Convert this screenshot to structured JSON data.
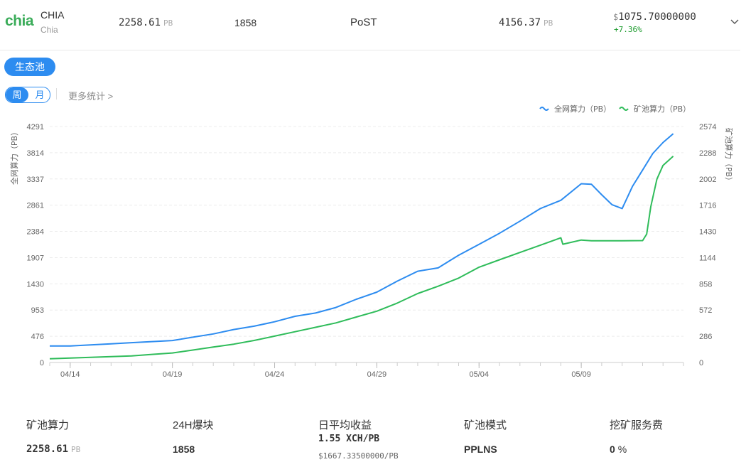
{
  "header": {
    "logo": "chia",
    "coin_name": "CHIA",
    "coin_sub": "Chia",
    "pool_hashrate": "2258.61",
    "pool_unit": "PB",
    "blocks": "1858",
    "algorithm": "PoST",
    "network_hashrate": "4156.37",
    "network_unit": "PB",
    "price_currency": "$",
    "price": "1075.70000000",
    "change": "+7.36%"
  },
  "tags": {
    "ecosystem": "生态池"
  },
  "tabs": {
    "week": "周",
    "month": "月",
    "more": "更多统计 >"
  },
  "chart_data": {
    "type": "line",
    "legend": [
      "全网算力（PB）",
      "矿池算力（PB）"
    ],
    "legend_position": "top-right",
    "ylabel_left": "全网算力（PB）",
    "ylabel_right": "矿池算力（PB）",
    "yticks_left": [
      "0",
      "476",
      "953",
      "1430",
      "1907",
      "2384",
      "2861",
      "3337",
      "3814",
      "4291"
    ],
    "yticks_right": [
      "0",
      "286",
      "572",
      "858",
      "1144",
      "1430",
      "1716",
      "2002",
      "2288",
      "2574"
    ],
    "ylim_left": [
      0,
      4291
    ],
    "ylim_right": [
      0,
      2574
    ],
    "x_ticks": [
      "04/14",
      "04/19",
      "04/24",
      "04/29",
      "05/04",
      "05/09"
    ],
    "x_days": [
      0,
      31
    ],
    "x_tick_days": [
      1,
      6,
      11,
      16,
      21,
      26
    ],
    "grid": true,
    "series": [
      {
        "name": "全网算力（PB）",
        "color": "#2d8cf0",
        "axis": "left",
        "x": [
          0,
          1,
          2,
          3,
          4,
          5,
          6,
          7,
          8,
          9,
          10,
          11,
          12,
          13,
          14,
          15,
          16,
          17,
          18,
          19,
          20,
          21,
          22,
          23,
          24,
          25,
          26,
          26.5,
          27,
          27.5,
          28,
          28.5,
          29,
          29.5,
          30,
          30.5
        ],
        "values": [
          300,
          300,
          320,
          340,
          360,
          380,
          400,
          460,
          520,
          600,
          660,
          740,
          840,
          900,
          1000,
          1150,
          1280,
          1480,
          1660,
          1720,
          1950,
          2150,
          2350,
          2570,
          2800,
          2950,
          3250,
          3240,
          3050,
          2870,
          2800,
          3200,
          3500,
          3800,
          4000,
          4160
        ]
      },
      {
        "name": "矿池算力（PB）",
        "color": "#2fbc5a",
        "axis": "right",
        "x": [
          0,
          1,
          2,
          3,
          4,
          5,
          6,
          7,
          8,
          9,
          10,
          11,
          12,
          13,
          14,
          15,
          16,
          17,
          18,
          19,
          20,
          21,
          22,
          23,
          24,
          25,
          25.1,
          26,
          26.5,
          27,
          28,
          29,
          29.2,
          29.4,
          29.7,
          30,
          30.5
        ],
        "values": [
          40,
          48,
          56,
          64,
          72,
          88,
          104,
          136,
          168,
          200,
          240,
          288,
          336,
          384,
          432,
          496,
          560,
          648,
          752,
          832,
          920,
          1040,
          1120,
          1200,
          1280,
          1360,
          1290,
          1336,
          1328,
          1328,
          1328,
          1330,
          1400,
          1700,
          2000,
          2150,
          2250
        ]
      }
    ]
  },
  "stats": {
    "pool_label": "矿池算力",
    "pool_value": "2258.61",
    "pool_unit": "PB",
    "blocks_label": "24H爆块",
    "blocks_value": "1858",
    "revenue_label": "日平均收益",
    "revenue_value": "1.55 XCH/PB",
    "revenue_usd": "$1667.33500000/PB",
    "mode_label": "矿池模式",
    "mode_value": "PPLNS",
    "fee_label": "挖矿服务费",
    "fee_value": "0",
    "fee_unit": "%"
  }
}
